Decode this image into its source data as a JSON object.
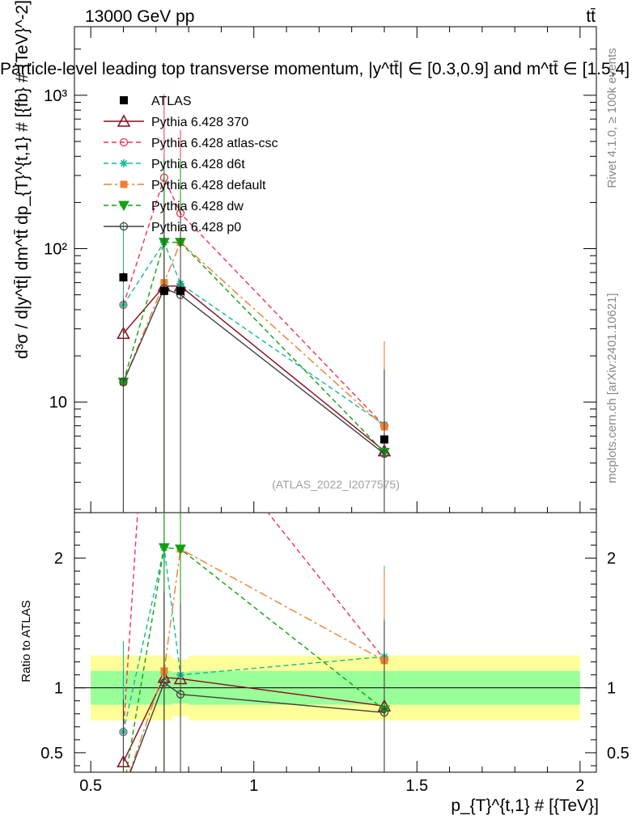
{
  "header": {
    "energy": "13000 GeV pp",
    "process": "tt̄",
    "plot_title": "Particle-level leading top transverse momentum, |y^tt̄| ∈ [0.3,0.9] and m^tt̄ ∈ [1.5,4]",
    "analysis_id": "(ATLAS_2022_I2077575)",
    "side_label_top": "Rivet 4.1.0, ≥ 100k events",
    "side_label_bottom": "mcplots.cern.ch [arXiv:2401.10621]"
  },
  "chart_data": {
    "type": "line",
    "title": "Particle-level leading top transverse momentum, |y^tt̄| ∈ [0.3,0.9] and m^tt̄ ∈ [1.5,4]",
    "xlabel": "p_{T}^{t,1} # [{TeV}]",
    "ylabel": "d³σ / d|y^tt̄| dm^tt̄ dp_{T}^{t,1} # [{fb} # {TeV}^-2]",
    "ratio_ylabel": "Ratio to ATLAS",
    "xlim": [
      0.45,
      2.05
    ],
    "ylim": [
      1.9,
      2800
    ],
    "ratio_ylim": [
      0.35,
      2.35
    ],
    "log_y": true,
    "x_ticks": [
      0.5,
      1,
      1.5,
      2
    ],
    "x_tick_labels": [
      "0.5",
      "1",
      "1.5",
      "2"
    ],
    "y_ticks": [
      10,
      100,
      1000
    ],
    "y_tick_labels": [
      "10",
      "10²",
      "10³"
    ],
    "ratio_ticks": [
      0.5,
      1,
      2
    ],
    "ratio_tick_labels": [
      "0.5",
      "1",
      "2"
    ],
    "data": {
      "name": "ATLAS",
      "x": [
        0.6,
        0.725,
        0.775,
        1.4
      ],
      "y": [
        65,
        53,
        53,
        5.7
      ],
      "bins": [
        [
          0.5,
          0.7
        ],
        [
          0.7,
          0.75
        ],
        [
          0.75,
          0.8
        ],
        [
          0.8,
          2.0
        ]
      ],
      "stat_band": [
        0.13,
        0.13,
        0.12,
        0.13
      ],
      "total_band": [
        0.25,
        0.25,
        0.22,
        0.25
      ]
    },
    "series": [
      {
        "name": "Pythia 6.428 370",
        "color": "#8b0a1a",
        "dash": "",
        "marker": "triangle-open",
        "x": [
          0.6,
          0.725,
          0.775,
          1.4
        ],
        "y": [
          28,
          57,
          57,
          4.8
        ],
        "ratio": [
          0.43,
          1.08,
          1.07,
          0.86
        ]
      },
      {
        "name": "Pythia 6.428 atlas-csc",
        "color": "#ee3355",
        "dash": "6,4",
        "marker": "circle-open",
        "x": [
          0.6,
          0.725,
          0.775,
          1.4
        ],
        "y": [
          43,
          290,
          170,
          7.0
        ],
        "ratio": [
          0.66,
          5.5,
          3.2,
          1.22
        ]
      },
      {
        "name": "Pythia 6.428 d6t",
        "color": "#11bb99",
        "dash": "6,4",
        "marker": "star",
        "x": [
          0.6,
          0.725,
          0.775,
          1.4
        ],
        "y": [
          43,
          110,
          59,
          7.1
        ],
        "ratio": [
          0.66,
          2.08,
          1.1,
          1.24
        ]
      },
      {
        "name": "Pythia 6.428 default",
        "color": "#f07f30",
        "dash": "10,4,3,4",
        "marker": "square",
        "x": [
          0.6,
          0.725,
          0.775,
          1.4
        ],
        "y": [
          13.5,
          60,
          110,
          6.9
        ],
        "ratio": [
          0.21,
          1.13,
          2.07,
          1.21
        ]
      },
      {
        "name": "Pythia 6.428 dw",
        "color": "#11a011",
        "dash": "6,4",
        "marker": "triangle-down",
        "x": [
          0.6,
          0.725,
          0.775,
          1.4
        ],
        "y": [
          13.5,
          110,
          110,
          4.7
        ],
        "ratio": [
          0.21,
          2.08,
          2.07,
          0.83
        ]
      },
      {
        "name": "Pythia 6.428 p0",
        "color": "#404040",
        "dash": "",
        "marker": "circle-open",
        "x": [
          0.6,
          0.725,
          0.775,
          1.4
        ],
        "y": [
          13.5,
          55,
          50,
          4.6
        ],
        "ratio": [
          0.21,
          1.04,
          0.95,
          0.81
        ]
      }
    ]
  }
}
